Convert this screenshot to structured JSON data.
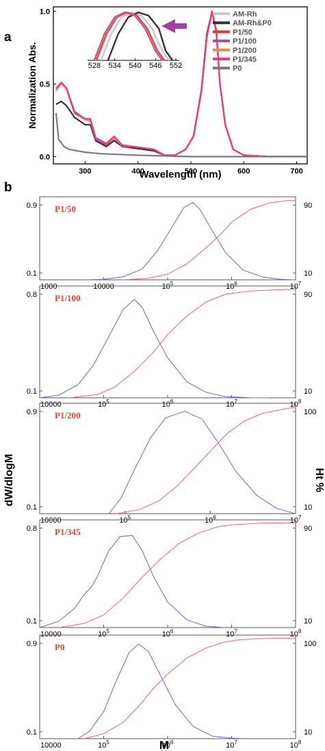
{
  "figure": {
    "panel_a_letter": "a",
    "panel_b_letter": "b",
    "shared_ylabel_left": "dW/dlogM",
    "shared_ylabel_right": "Ht %",
    "shared_xlabel": "M"
  },
  "chart_data": [
    {
      "type": "line",
      "panel": "a",
      "xlabel": "Wavelength (nm)",
      "ylabel": "Normalization Abs.",
      "xlim": [
        240,
        720
      ],
      "ylim": [
        -0.05,
        1.03
      ],
      "xticks": [
        300,
        400,
        500,
        600,
        700
      ],
      "yticks": [
        0.0,
        0.5,
        1.0
      ],
      "ytick_labels": [
        "0.0",
        "0.5",
        "1.0"
      ],
      "legend_position": "top-right",
      "series": [
        {
          "name": "AM-Rh",
          "color": "#c8c8c8",
          "x": [
            245,
            255,
            265,
            280,
            300,
            310,
            320,
            340,
            355,
            370,
            390,
            410,
            430,
            450,
            470,
            490,
            505,
            520,
            530,
            540,
            548,
            555,
            565,
            580,
            600,
            650,
            720
          ],
          "y": [
            0.45,
            0.5,
            0.46,
            0.3,
            0.25,
            0.24,
            0.12,
            0.08,
            0.12,
            0.07,
            0.06,
            0.05,
            0.04,
            0.01,
            0.01,
            0.05,
            0.14,
            0.45,
            0.82,
            0.99,
            0.86,
            0.5,
            0.22,
            0.05,
            0.01,
            0.0,
            0.0
          ]
        },
        {
          "name": "AM-Rh&P0",
          "color": "#333333",
          "x": [
            245,
            255,
            265,
            280,
            300,
            310,
            320,
            340,
            355,
            370,
            390,
            410,
            430,
            450,
            470,
            490,
            505,
            520,
            530,
            540,
            548,
            555,
            565,
            580,
            600,
            650,
            720
          ],
          "y": [
            0.36,
            0.38,
            0.35,
            0.27,
            0.22,
            0.22,
            0.11,
            0.07,
            0.11,
            0.07,
            0.06,
            0.05,
            0.04,
            0.01,
            0.01,
            0.05,
            0.14,
            0.46,
            0.84,
            1.0,
            0.87,
            0.5,
            0.22,
            0.05,
            0.01,
            0.0,
            0.0
          ]
        },
        {
          "name": "P1/50",
          "color": "#e8322c",
          "x": [
            245,
            255,
            265,
            280,
            300,
            310,
            320,
            340,
            355,
            370,
            390,
            410,
            430,
            450,
            470,
            490,
            505,
            520,
            530,
            540,
            548,
            555,
            565,
            580,
            600,
            650,
            720
          ],
          "y": [
            0.46,
            0.51,
            0.47,
            0.3,
            0.26,
            0.25,
            0.12,
            0.08,
            0.13,
            0.07,
            0.07,
            0.06,
            0.05,
            0.01,
            0.01,
            0.05,
            0.14,
            0.45,
            0.82,
            1.0,
            0.86,
            0.5,
            0.22,
            0.05,
            0.01,
            0.0,
            0.0
          ]
        },
        {
          "name": "P1/100",
          "color": "#9b4fa5",
          "x": [
            245,
            255,
            265,
            280,
            300,
            310,
            320,
            340,
            355,
            370,
            390,
            410,
            430,
            450,
            470,
            490,
            505,
            520,
            530,
            540,
            548,
            555,
            565,
            580,
            600,
            650,
            720
          ],
          "y": [
            0.46,
            0.51,
            0.47,
            0.3,
            0.26,
            0.25,
            0.12,
            0.08,
            0.13,
            0.07,
            0.07,
            0.06,
            0.05,
            0.01,
            0.01,
            0.05,
            0.14,
            0.45,
            0.82,
            1.0,
            0.86,
            0.5,
            0.22,
            0.05,
            0.01,
            0.0,
            0.0
          ]
        },
        {
          "name": "P1/200",
          "color": "#f28a2e",
          "x": [
            245,
            255,
            265,
            280,
            300,
            310,
            320,
            340,
            355,
            370,
            390,
            410,
            430,
            450,
            470,
            490,
            505,
            520,
            530,
            540,
            548,
            555,
            565,
            580,
            600,
            650,
            720
          ],
          "y": [
            0.46,
            0.51,
            0.47,
            0.31,
            0.26,
            0.25,
            0.13,
            0.09,
            0.13,
            0.08,
            0.07,
            0.06,
            0.05,
            0.01,
            0.01,
            0.05,
            0.14,
            0.45,
            0.82,
            1.0,
            0.86,
            0.5,
            0.22,
            0.05,
            0.01,
            0.0,
            0.0
          ]
        },
        {
          "name": "P1/345",
          "color": "#e83e7d",
          "x": [
            245,
            255,
            265,
            280,
            300,
            310,
            320,
            340,
            355,
            370,
            390,
            410,
            430,
            450,
            470,
            490,
            505,
            520,
            530,
            540,
            548,
            555,
            565,
            580,
            600,
            650,
            720
          ],
          "y": [
            0.47,
            0.51,
            0.47,
            0.31,
            0.26,
            0.26,
            0.13,
            0.09,
            0.14,
            0.08,
            0.07,
            0.06,
            0.05,
            0.01,
            0.01,
            0.05,
            0.14,
            0.45,
            0.82,
            1.0,
            0.86,
            0.5,
            0.22,
            0.05,
            0.01,
            0.0,
            0.0
          ]
        },
        {
          "name": "P0",
          "color": "#7a7a7a",
          "x": [
            245,
            250,
            260,
            270,
            285,
            300,
            330,
            400,
            500,
            720
          ],
          "y": [
            0.3,
            0.12,
            0.07,
            0.05,
            0.04,
            0.03,
            0.02,
            0.01,
            0.0,
            0.0
          ]
        }
      ],
      "inset": {
        "xlim": [
          526,
          553
        ],
        "ylim": [
          0,
          1.0
        ],
        "xticks": [
          528,
          534,
          540,
          546,
          552
        ],
        "arrow_direction": "left",
        "arrow_color": "#a040a0",
        "series": [
          {
            "name": "AM-Rh",
            "color": "#c8c8c8",
            "x": [
              530,
              533,
              536,
              539,
              542,
              545,
              548,
              550
            ],
            "y": [
              0.0,
              0.55,
              0.9,
              1.0,
              0.93,
              0.66,
              0.2,
              0.0
            ]
          },
          {
            "name": "AM-Rh&P0",
            "color": "#333333",
            "x": [
              532,
              535,
              538,
              541,
              544,
              547,
              549,
              551
            ],
            "y": [
              0.0,
              0.55,
              0.9,
              1.0,
              0.93,
              0.66,
              0.2,
              0.0
            ]
          },
          {
            "name": "P1/50",
            "color": "#e8322c",
            "x": [
              528,
              531,
              534,
              537,
              540,
              543,
              546,
              548
            ],
            "y": [
              0.0,
              0.55,
              0.9,
              1.0,
              0.93,
              0.66,
              0.2,
              0.0
            ]
          },
          {
            "name": "P1/100",
            "color": "#9b4fa5",
            "x": [
              528,
              531,
              534,
              537,
              540,
              543,
              546,
              548
            ],
            "y": [
              0.0,
              0.55,
              0.9,
              1.0,
              0.93,
              0.66,
              0.2,
              0.0
            ]
          },
          {
            "name": "P1/200",
            "color": "#f28a2e",
            "x": [
              528.3,
              531.3,
              534.3,
              537.3,
              540.3,
              543.3,
              546.3,
              548.3
            ],
            "y": [
              0.0,
              0.55,
              0.9,
              1.0,
              0.93,
              0.66,
              0.2,
              0.0
            ]
          },
          {
            "name": "P1/345",
            "color": "#e83e7d",
            "x": [
              528.6,
              531.6,
              534.6,
              537.6,
              540.6,
              543.6,
              546.6,
              548.6
            ],
            "y": [
              0.0,
              0.55,
              0.9,
              1.0,
              0.93,
              0.66,
              0.2,
              0.0
            ]
          }
        ]
      }
    },
    {
      "type": "line",
      "panel": "b",
      "label": "P1/50",
      "xscale": "log",
      "xlim": [
        1000,
        10000000
      ],
      "xtick_labels": [
        {
          "x": 1000,
          "base": "1000",
          "exp": ""
        },
        {
          "x": 10000,
          "base": "10000",
          "exp": ""
        },
        {
          "x": 100000,
          "base": "10",
          "exp": "5"
        },
        {
          "x": 1000000,
          "base": "10",
          "exp": "6"
        },
        {
          "x": 10000000,
          "base": "10",
          "exp": "7"
        }
      ],
      "left_ytick_labels": [
        "0.9",
        "0.1"
      ],
      "right_ytick_labels": [
        "90",
        "10"
      ],
      "dw": {
        "color": "#6a6ad0",
        "x": [
          5000,
          10000,
          20000,
          40000,
          70000,
          120000,
          180000,
          250000,
          320000,
          500000,
          800000,
          1500000,
          3000000,
          6000000,
          10000000
        ],
        "y": [
          0.0,
          0.005,
          0.03,
          0.11,
          0.3,
          0.55,
          0.74,
          0.79,
          0.72,
          0.5,
          0.28,
          0.1,
          0.03,
          0.005,
          0.0
        ]
      },
      "ht": {
        "color": "#e86a6a",
        "x": [
          20000,
          50000,
          100000,
          200000,
          400000,
          700000,
          1000000,
          2000000,
          4000000,
          7000000,
          10000000
        ],
        "y": [
          0.0,
          2,
          7,
          20,
          40,
          58,
          72,
          88,
          96,
          98.5,
          99
        ]
      }
    },
    {
      "type": "line",
      "panel": "b",
      "label": "P1/100",
      "xscale": "log",
      "xlim": [
        10000,
        100000000
      ],
      "xtick_labels": [
        {
          "x": 10000,
          "base": "10000",
          "exp": ""
        },
        {
          "x": 100000,
          "base": "10",
          "exp": "5"
        },
        {
          "x": 1000000,
          "base": "10",
          "exp": "6"
        },
        {
          "x": 10000000,
          "base": "10",
          "exp": "7"
        },
        {
          "x": 100000000,
          "base": "10",
          "exp": "8"
        }
      ],
      "left_ytick_labels": [
        "0.8",
        "0.1"
      ],
      "right_ytick_labels": [
        "90",
        "10"
      ],
      "dw": {
        "color": "#6a6ad0",
        "x": [
          10000,
          20000,
          40000,
          70000,
          120000,
          200000,
          300000,
          400000,
          600000,
          1000000,
          2000000,
          4000000,
          8000000,
          20000000,
          40000000
        ],
        "y": [
          0.0,
          0.02,
          0.1,
          0.25,
          0.46,
          0.66,
          0.74,
          0.68,
          0.5,
          0.3,
          0.12,
          0.04,
          0.01,
          0.0,
          0.0
        ]
      },
      "ht": {
        "color": "#e86a6a",
        "x": [
          30000,
          80000,
          150000,
          300000,
          600000,
          1000000,
          2000000,
          4000000,
          8000000,
          20000000,
          50000000,
          100000000
        ],
        "y": [
          0.0,
          3,
          10,
          24,
          42,
          58,
          75,
          88,
          95,
          98,
          99,
          99.5
        ]
      }
    },
    {
      "type": "line",
      "panel": "b",
      "label": "P1/200",
      "xscale": "log",
      "xlim": [
        10000,
        10000000
      ],
      "xtick_labels": [
        {
          "x": 10000,
          "base": "10000",
          "exp": ""
        },
        {
          "x": 100000,
          "base": "10",
          "exp": "5"
        },
        {
          "x": 1000000,
          "base": "10",
          "exp": "6"
        },
        {
          "x": 10000000,
          "base": "10",
          "exp": "7"
        }
      ],
      "left_ytick_labels": [
        "0.9",
        "0.1"
      ],
      "right_ytick_labels": [
        "100",
        "10"
      ],
      "dw": {
        "color": "#6a6ad0",
        "x": [
          65000,
          90000,
          130000,
          200000,
          300000,
          500000,
          800000,
          1300000,
          2000000,
          3500000,
          6000000,
          10000000
        ],
        "y": [
          0.0,
          0.12,
          0.34,
          0.58,
          0.73,
          0.78,
          0.72,
          0.52,
          0.32,
          0.14,
          0.04,
          0.0
        ]
      },
      "ht": {
        "color": "#e86a6a",
        "x": [
          80000,
          150000,
          250000,
          400000,
          700000,
          1000000,
          1600000,
          2500000,
          4000000,
          7000000,
          10000000
        ],
        "y": [
          0.0,
          4,
          12,
          25,
          45,
          58,
          75,
          86,
          93,
          97,
          99
        ]
      }
    },
    {
      "type": "line",
      "panel": "b",
      "label": "P1/345",
      "xscale": "log",
      "xlim": [
        10000,
        100000000
      ],
      "xtick_labels": [
        {
          "x": 10000,
          "base": "10000",
          "exp": ""
        },
        {
          "x": 100000,
          "base": "10",
          "exp": "5"
        },
        {
          "x": 1000000,
          "base": "10",
          "exp": "6"
        },
        {
          "x": 10000000,
          "base": "10",
          "exp": "7"
        },
        {
          "x": 100000000,
          "base": "10",
          "exp": "8"
        }
      ],
      "left_ytick_labels": [
        "0.8",
        "0.1"
      ],
      "right_ytick_labels": [
        "90",
        "10"
      ],
      "dw": {
        "color": "#6a6ad0",
        "x": [
          10000,
          20000,
          35000,
          50000,
          65000,
          80000,
          120000,
          180000,
          280000,
          400000,
          600000,
          1000000,
          2000000,
          4000000,
          8000000
        ],
        "y": [
          0.0,
          0.05,
          0.15,
          0.26,
          0.32,
          0.4,
          0.6,
          0.71,
          0.72,
          0.6,
          0.4,
          0.2,
          0.06,
          0.01,
          0.0
        ]
      },
      "ht": {
        "color": "#e86a6a",
        "x": [
          20000,
          50000,
          100000,
          200000,
          400000,
          800000,
          1500000,
          3000000,
          6000000,
          10000000,
          30000000,
          100000000
        ],
        "y": [
          0.0,
          4,
          12,
          28,
          48,
          66,
          80,
          90,
          96,
          98,
          99.5,
          99.8
        ]
      }
    },
    {
      "type": "line",
      "panel": "b",
      "label": "P0",
      "xscale": "log",
      "xlim": [
        10000,
        100000000
      ],
      "xtick_labels": [
        {
          "x": 10000,
          "base": "10000",
          "exp": ""
        },
        {
          "x": 100000,
          "base": "10",
          "exp": "5"
        },
        {
          "x": 1000000,
          "base": "10",
          "exp": "6"
        },
        {
          "x": 10000000,
          "base": "10",
          "exp": "7"
        },
        {
          "x": 100000000,
          "base": "10",
          "exp": "8"
        }
      ],
      "left_ytick_labels": [
        "0.9",
        "0.1"
      ],
      "right_ytick_labels": [
        "100",
        "10"
      ],
      "dw": {
        "color": "#6a6ad0",
        "x": [
          40000,
          60000,
          100000,
          160000,
          250000,
          350000,
          500000,
          800000,
          1300000,
          2500000,
          5000000,
          10000000,
          15000000
        ],
        "y": [
          0.0,
          0.06,
          0.22,
          0.48,
          0.7,
          0.77,
          0.71,
          0.5,
          0.28,
          0.1,
          0.02,
          0.005,
          0.0
        ]
      },
      "ht": {
        "color": "#e86a6a",
        "x": [
          50000,
          100000,
          200000,
          350000,
          600000,
          1000000,
          2000000,
          4000000,
          8000000,
          15000000,
          40000000,
          100000000
        ],
        "y": [
          0.0,
          5,
          16,
          32,
          50,
          64,
          80,
          90,
          96,
          98.5,
          99.5,
          99.8
        ]
      }
    }
  ]
}
